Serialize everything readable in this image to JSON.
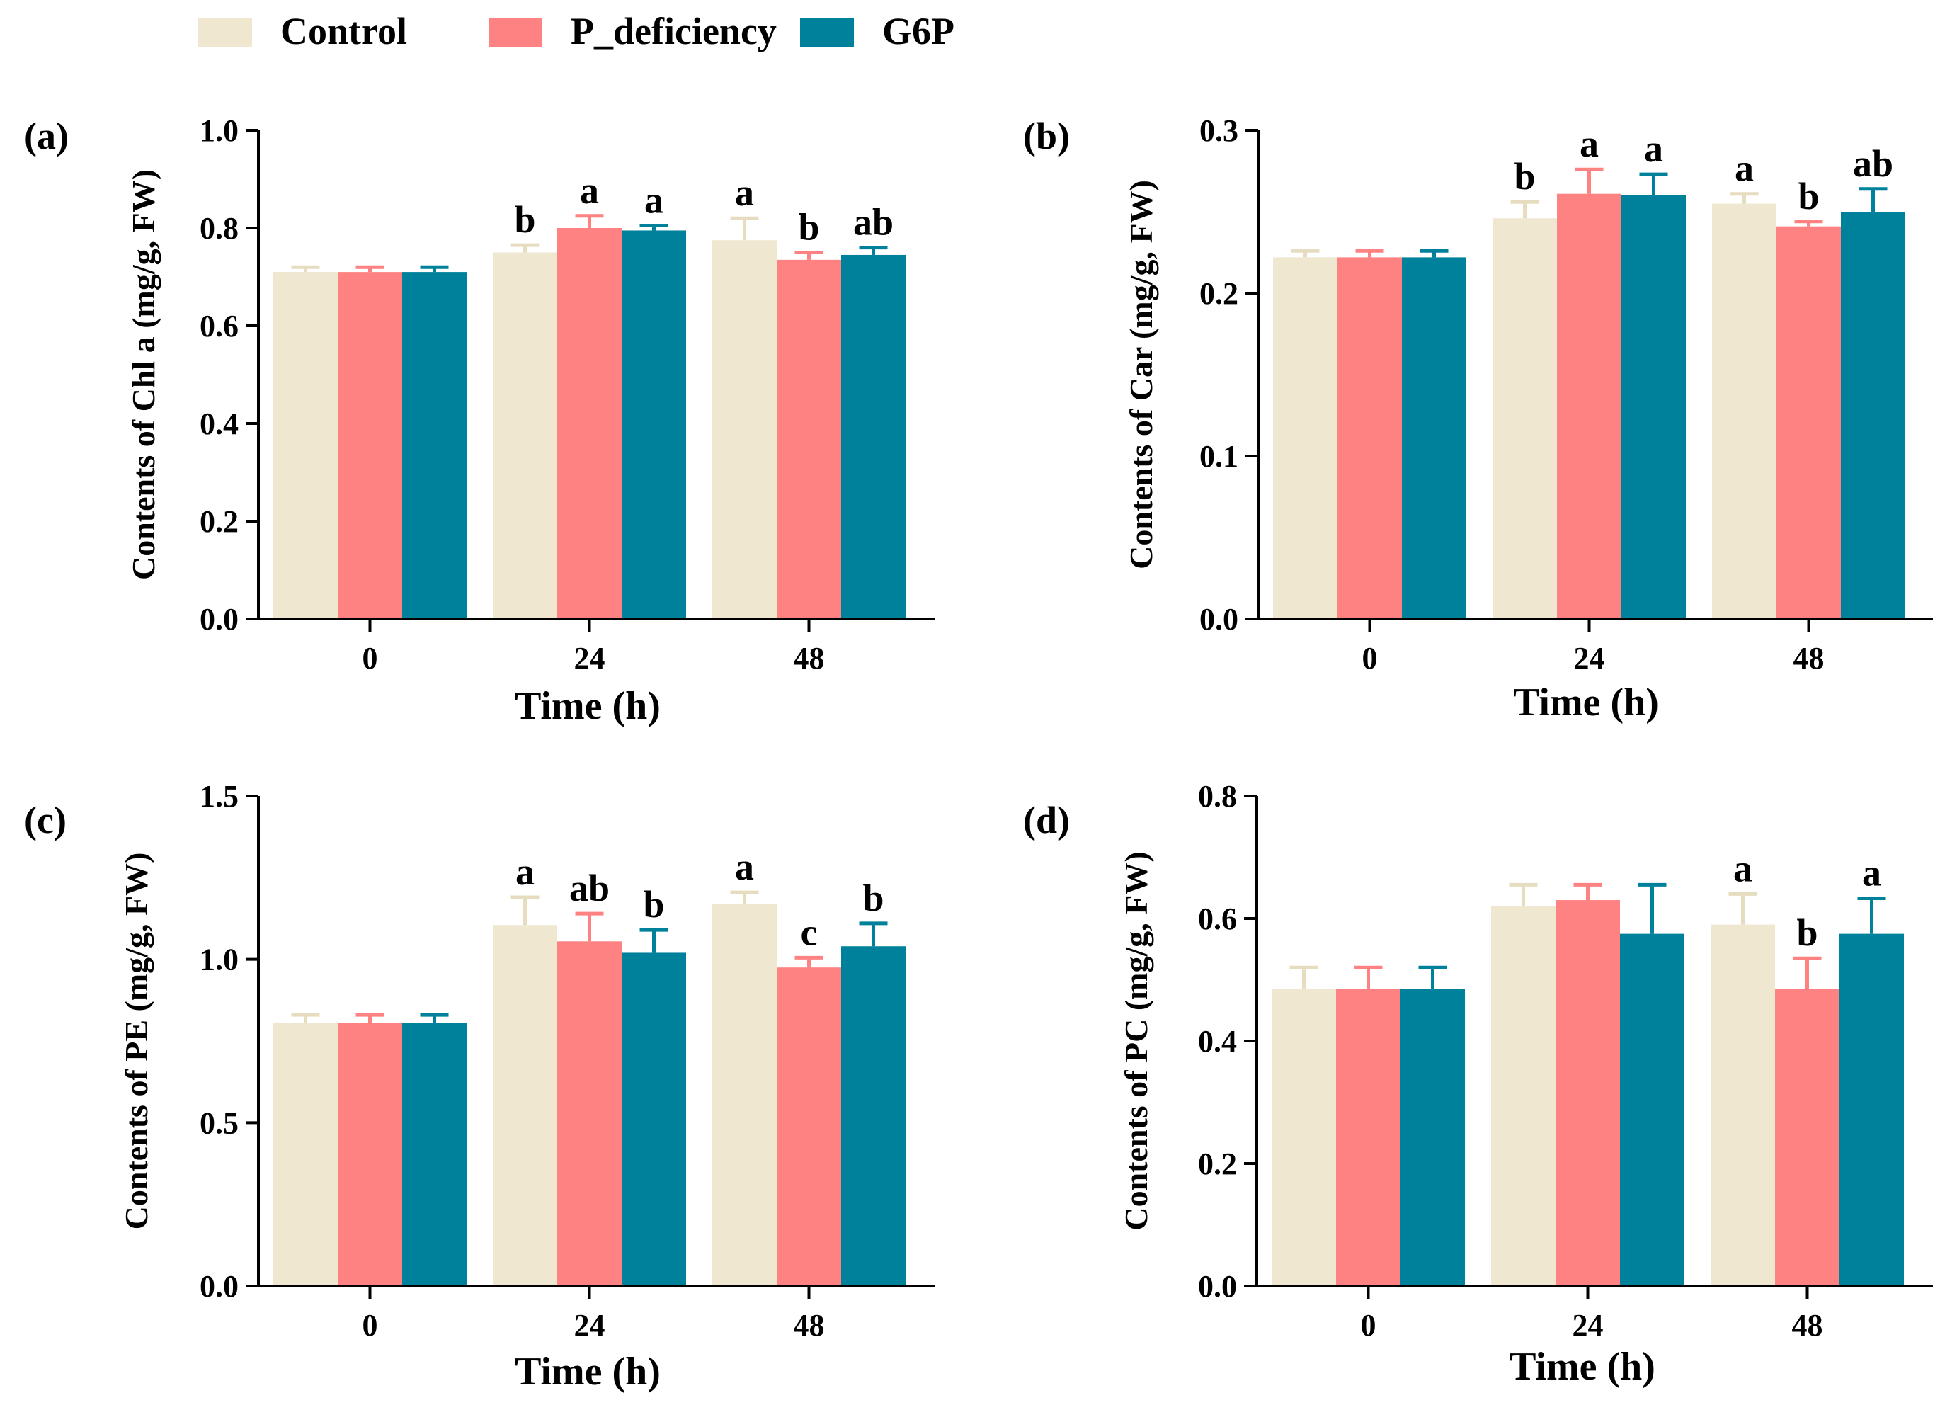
{
  "legend": [
    {
      "name": "Control",
      "color": "#EFE7CF"
    },
    {
      "name": "P_deficiency",
      "color": "#FF8282"
    },
    {
      "name": "G6P",
      "color": "#00819B"
    }
  ],
  "chart_data": [
    {
      "type": "bar",
      "panel_label": "(a)",
      "categories": [
        "0",
        "24",
        "48"
      ],
      "xlabel": "Time (h)",
      "ylabel": "Contents of Chl a (mg/g, FW)",
      "ylim": [
        0,
        1.0
      ],
      "yticks": [
        "0.0",
        "0.2",
        "0.4",
        "0.6",
        "0.8",
        "1.0"
      ],
      "series": [
        {
          "name": "Control",
          "values": [
            0.71,
            0.75,
            0.775
          ],
          "errors": [
            0.01,
            0.015,
            0.045
          ],
          "letters": [
            "",
            "b",
            "a"
          ]
        },
        {
          "name": "P_deficiency",
          "values": [
            0.71,
            0.8,
            0.735
          ],
          "errors": [
            0.01,
            0.025,
            0.015
          ],
          "letters": [
            "",
            "a",
            "b"
          ]
        },
        {
          "name": "G6P",
          "values": [
            0.71,
            0.795,
            0.745
          ],
          "errors": [
            0.01,
            0.01,
            0.015
          ],
          "letters": [
            "",
            "a",
            "ab"
          ]
        }
      ]
    },
    {
      "type": "bar",
      "panel_label": "(b)",
      "categories": [
        "0",
        "24",
        "48"
      ],
      "xlabel": "Time (h)",
      "ylabel": "Contents of Car (mg/g, FW)",
      "ylim": [
        0,
        0.3
      ],
      "yticks": [
        "0.0",
        "0.1",
        "0.2",
        "0.3"
      ],
      "series": [
        {
          "name": "Control",
          "values": [
            0.222,
            0.246,
            0.255
          ],
          "errors": [
            0.004,
            0.01,
            0.006
          ],
          "letters": [
            "",
            "b",
            "a"
          ]
        },
        {
          "name": "P_deficiency",
          "values": [
            0.222,
            0.261,
            0.241
          ],
          "errors": [
            0.004,
            0.015,
            0.003
          ],
          "letters": [
            "",
            "a",
            "b"
          ]
        },
        {
          "name": "G6P",
          "values": [
            0.222,
            0.26,
            0.25
          ],
          "errors": [
            0.004,
            0.013,
            0.014
          ],
          "letters": [
            "",
            "a",
            "ab"
          ]
        }
      ]
    },
    {
      "type": "bar",
      "panel_label": "(c)",
      "categories": [
        "0",
        "24",
        "48"
      ],
      "xlabel": "Time (h)",
      "ylabel": "Contents of PE (mg/g, FW)",
      "ylim": [
        0,
        1.5
      ],
      "yticks": [
        "0.0",
        "0.5",
        "1.0",
        "1.5"
      ],
      "series": [
        {
          "name": "Control",
          "values": [
            0.805,
            1.105,
            1.17
          ],
          "errors": [
            0.025,
            0.085,
            0.035
          ],
          "letters": [
            "",
            "a",
            "a"
          ]
        },
        {
          "name": "P_deficiency",
          "values": [
            0.805,
            1.055,
            0.975
          ],
          "errors": [
            0.025,
            0.085,
            0.03
          ],
          "letters": [
            "",
            "ab",
            "c"
          ]
        },
        {
          "name": "G6P",
          "values": [
            0.805,
            1.02,
            1.04
          ],
          "errors": [
            0.025,
            0.07,
            0.07
          ],
          "letters": [
            "",
            "b",
            "b"
          ]
        }
      ]
    },
    {
      "type": "bar",
      "panel_label": "(d)",
      "categories": [
        "0",
        "24",
        "48"
      ],
      "xlabel": "Time (h)",
      "ylabel": "Contents of PC (mg/g, FW)",
      "ylim": [
        0,
        0.8
      ],
      "yticks": [
        "0.0",
        "0.2",
        "0.4",
        "0.6",
        "0.8"
      ],
      "series": [
        {
          "name": "Control",
          "values": [
            0.485,
            0.62,
            0.59
          ],
          "errors": [
            0.035,
            0.035,
            0.05
          ],
          "letters": [
            "",
            "",
            "a"
          ]
        },
        {
          "name": "P_deficiency",
          "values": [
            0.485,
            0.63,
            0.485
          ],
          "errors": [
            0.035,
            0.025,
            0.05
          ],
          "letters": [
            "",
            "",
            "b"
          ]
        },
        {
          "name": "G6P",
          "values": [
            0.485,
            0.575,
            0.575
          ],
          "errors": [
            0.035,
            0.08,
            0.058
          ],
          "letters": [
            "",
            "",
            "a"
          ]
        }
      ]
    }
  ]
}
